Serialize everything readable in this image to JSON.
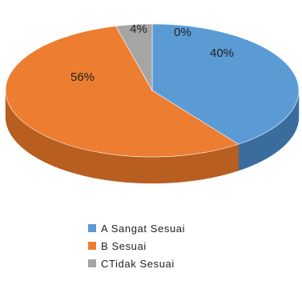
{
  "chart_data": {
    "type": "pie",
    "style": "3d",
    "slices": [
      {
        "label": "A Sangat Sesuai",
        "value": 40,
        "display": "40%",
        "color": "#5B9BD5",
        "side_color": "#3A6D9E"
      },
      {
        "label": "B Sesuai",
        "value": 56,
        "display": "56%",
        "color": "#ED7D31",
        "side_color": "#B85E20"
      },
      {
        "label": "C Tidak Sesuai",
        "value": 4,
        "display": "4%",
        "color": "#A5A5A5",
        "side_color": "#7A7A7A"
      },
      {
        "label": "",
        "value": 0,
        "display": "0%",
        "color": "#FFC000",
        "side_color": "#C49400"
      }
    ],
    "legend_position": "bottom",
    "legend": [
      "A Sangat Sesuai",
      "B Sesuai",
      "CTidak Sesuai"
    ]
  }
}
